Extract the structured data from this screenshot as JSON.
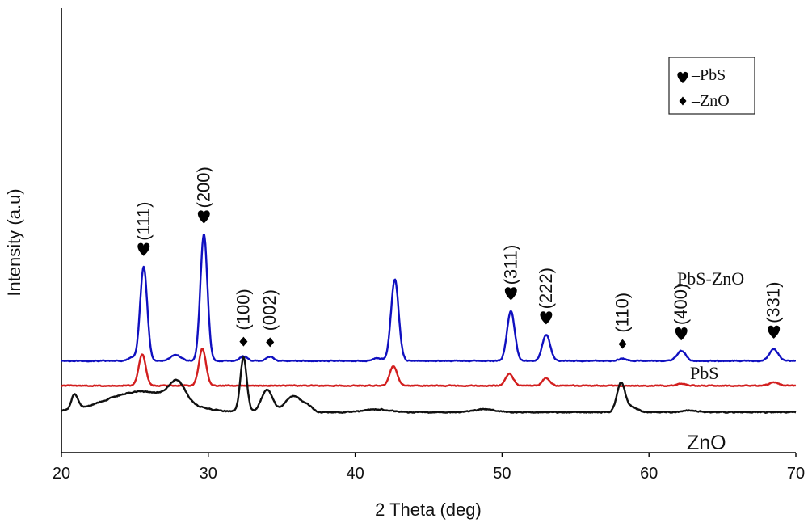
{
  "chart_data": {
    "type": "line",
    "xlabel": "2 Theta (deg)",
    "ylabel": "Intensity (a.u)",
    "xlim": [
      20,
      70
    ],
    "x_ticks": [
      "20",
      "30",
      "40",
      "50",
      "60",
      "70"
    ],
    "grid": false,
    "legend": {
      "placement": "top-right",
      "entries": [
        {
          "symbol": "heart",
          "label": "–PbS"
        },
        {
          "symbol": "diamond",
          "label": "–ZnO"
        }
      ]
    },
    "series": [
      {
        "name": "PbS-ZnO",
        "color": "#1010c0",
        "baseline": 0.87,
        "noise": 0.012,
        "peaks": [
          {
            "x": 24.8,
            "h": 0.06,
            "w": 0.25
          },
          {
            "x": 25.6,
            "h": 1.6,
            "w": 0.24
          },
          {
            "x": 27.8,
            "h": 0.1,
            "w": 0.35
          },
          {
            "x": 29.7,
            "h": 2.15,
            "w": 0.24
          },
          {
            "x": 32.4,
            "h": 0.08,
            "w": 0.25
          },
          {
            "x": 34.2,
            "h": 0.07,
            "w": 0.25
          },
          {
            "x": 41.5,
            "h": 0.05,
            "w": 0.3
          },
          {
            "x": 42.7,
            "h": 1.38,
            "w": 0.26
          },
          {
            "x": 50.6,
            "h": 0.85,
            "w": 0.26
          },
          {
            "x": 53.0,
            "h": 0.44,
            "w": 0.27
          },
          {
            "x": 58.2,
            "h": 0.04,
            "w": 0.25
          },
          {
            "x": 62.2,
            "h": 0.17,
            "w": 0.3
          },
          {
            "x": 68.5,
            "h": 0.2,
            "w": 0.3
          }
        ]
      },
      {
        "name": "PbS",
        "color": "#d21e1e",
        "baseline": 0.45,
        "noise": 0.012,
        "peaks": [
          {
            "x": 25.5,
            "h": 0.53,
            "w": 0.24
          },
          {
            "x": 29.6,
            "h": 0.63,
            "w": 0.24
          },
          {
            "x": 42.6,
            "h": 0.33,
            "w": 0.26
          },
          {
            "x": 50.5,
            "h": 0.2,
            "w": 0.26
          },
          {
            "x": 53.0,
            "h": 0.13,
            "w": 0.25
          },
          {
            "x": 62.2,
            "h": 0.04,
            "w": 0.3
          },
          {
            "x": 68.5,
            "h": 0.06,
            "w": 0.3
          }
        ]
      },
      {
        "name": "ZnO",
        "color": "#111111",
        "baseline": 0.0,
        "noise": 0.014,
        "peaks": [
          {
            "x": 20.9,
            "h": 0.25,
            "w": 0.22
          },
          {
            "x": 25.5,
            "h": 0.35,
            "w": 2.4
          },
          {
            "x": 27.9,
            "h": 0.33,
            "w": 0.55
          },
          {
            "x": 32.4,
            "h": 0.92,
            "w": 0.22
          },
          {
            "x": 34.0,
            "h": 0.38,
            "w": 0.38
          },
          {
            "x": 35.8,
            "h": 0.28,
            "w": 0.55
          },
          {
            "x": 36.8,
            "h": 0.08,
            "w": 0.3
          },
          {
            "x": 41.5,
            "h": 0.05,
            "w": 0.8
          },
          {
            "x": 48.8,
            "h": 0.05,
            "w": 0.7
          },
          {
            "x": 58.1,
            "h": 0.5,
            "w": 0.28
          },
          {
            "x": 58.9,
            "h": 0.08,
            "w": 0.35
          },
          {
            "x": 62.8,
            "h": 0.03,
            "w": 0.5
          }
        ]
      }
    ],
    "annotations": [
      {
        "text": "(111)",
        "x": 25.6,
        "marker": "heart"
      },
      {
        "text": "(200)",
        "x": 29.7,
        "marker": "heart"
      },
      {
        "text": "(100)",
        "x": 32.4,
        "marker": "diamond"
      },
      {
        "text": "(002)",
        "x": 34.2,
        "marker": "diamond"
      },
      {
        "text": "(311)",
        "x": 50.6,
        "marker": "heart"
      },
      {
        "text": "(222)",
        "x": 53.0,
        "marker": "heart"
      },
      {
        "text": "(110)",
        "x": 58.2,
        "marker": "diamond"
      },
      {
        "text": "(400)",
        "x": 62.2,
        "marker": "heart"
      },
      {
        "text": "(331)",
        "x": 68.5,
        "marker": "heart"
      }
    ],
    "sample_labels": [
      "PbS-ZnO",
      "PbS",
      "ZnO"
    ]
  }
}
